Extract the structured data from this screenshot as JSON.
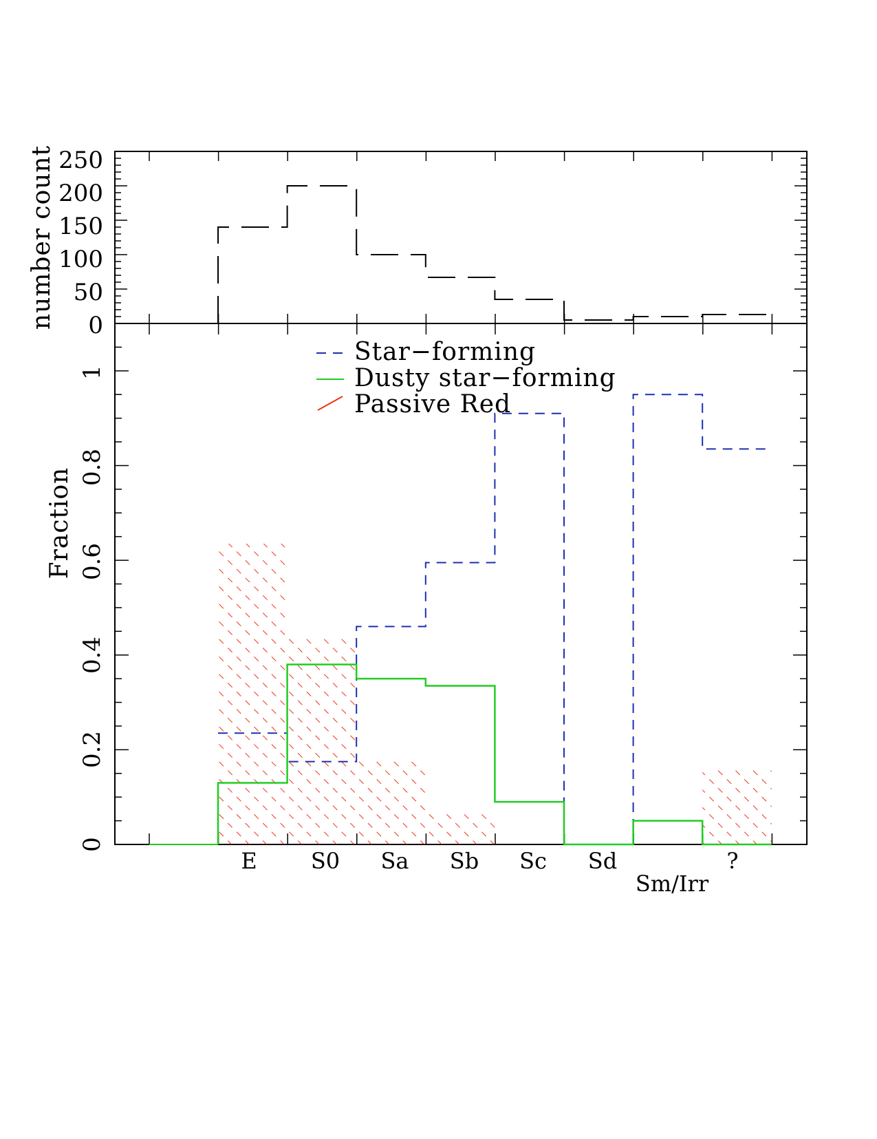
{
  "chart_data": [
    {
      "type": "step",
      "panel": "top",
      "ylabel": "number count",
      "ylim": [
        0,
        250
      ],
      "yticks": [
        "250",
        "200",
        "150",
        "100",
        "50",
        "0"
      ],
      "categories": [
        "E",
        "S0",
        "Sa",
        "Sb",
        "Sc",
        "Sd",
        "Sm/Irr",
        "?"
      ],
      "series": [
        {
          "values": [
            140,
            200,
            100,
            67,
            35,
            5,
            10,
            13
          ],
          "color": "#000000",
          "style": "long-dash"
        }
      ]
    },
    {
      "type": "step",
      "panel": "bottom",
      "ylabel": "Fraction",
      "ylim": [
        0,
        1.1
      ],
      "yticks": [
        "0",
        "0.2",
        "0.4",
        "0.6",
        "0.8",
        "1"
      ],
      "categories": [
        "E",
        "S0",
        "Sa",
        "Sb",
        "Sc",
        "Sd",
        "Sm/Irr",
        "?"
      ],
      "legend_position": "top-center",
      "series": [
        {
          "name": "Star−forming",
          "values": [
            0.235,
            0.175,
            0.46,
            0.595,
            0.91,
            0,
            0.95,
            0.835
          ],
          "color": "#1c2fb0",
          "style": "dashed"
        },
        {
          "name": "Dusty star−forming",
          "values": [
            0.13,
            0.38,
            0.35,
            0.335,
            0.09,
            0,
            0.05,
            0
          ],
          "color": "#22cc22",
          "style": "solid"
        },
        {
          "name": "Passive Red",
          "values": [
            0.635,
            0.44,
            0.18,
            0.07,
            0,
            0,
            0,
            0.165
          ],
          "color": "#ee3311",
          "style": "hatched"
        }
      ]
    }
  ]
}
